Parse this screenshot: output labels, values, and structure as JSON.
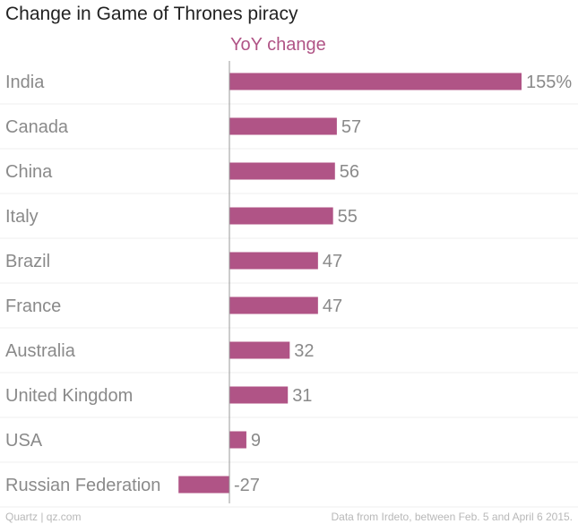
{
  "header": {
    "title": "Change in Game of Thrones piracy"
  },
  "footer": {
    "source_left": "Quartz | qz.com",
    "source_right": "Data from Irdeto, between Feb. 5 and April 6 2015."
  },
  "colors": {
    "bar": "#b05486",
    "series_label": "#b05486"
  },
  "chart_data": {
    "type": "bar",
    "orientation": "horizontal",
    "title": "Change in Game of Thrones piracy",
    "series": [
      {
        "name": "YoY change",
        "values": [
          155,
          57,
          56,
          55,
          47,
          47,
          32,
          31,
          9,
          -27
        ],
        "labels": [
          "155%",
          "57",
          "56",
          "55",
          "47",
          "47",
          "32",
          "31",
          "9",
          "-27"
        ]
      }
    ],
    "categories": [
      "India",
      "Canada",
      "China",
      "Italy",
      "Brazil",
      "France",
      "Australia",
      "United Kingdom",
      "USA",
      "Russian Federation"
    ],
    "xlim": [
      -27,
      155
    ],
    "grid": true,
    "xlabel": "",
    "ylabel": ""
  }
}
